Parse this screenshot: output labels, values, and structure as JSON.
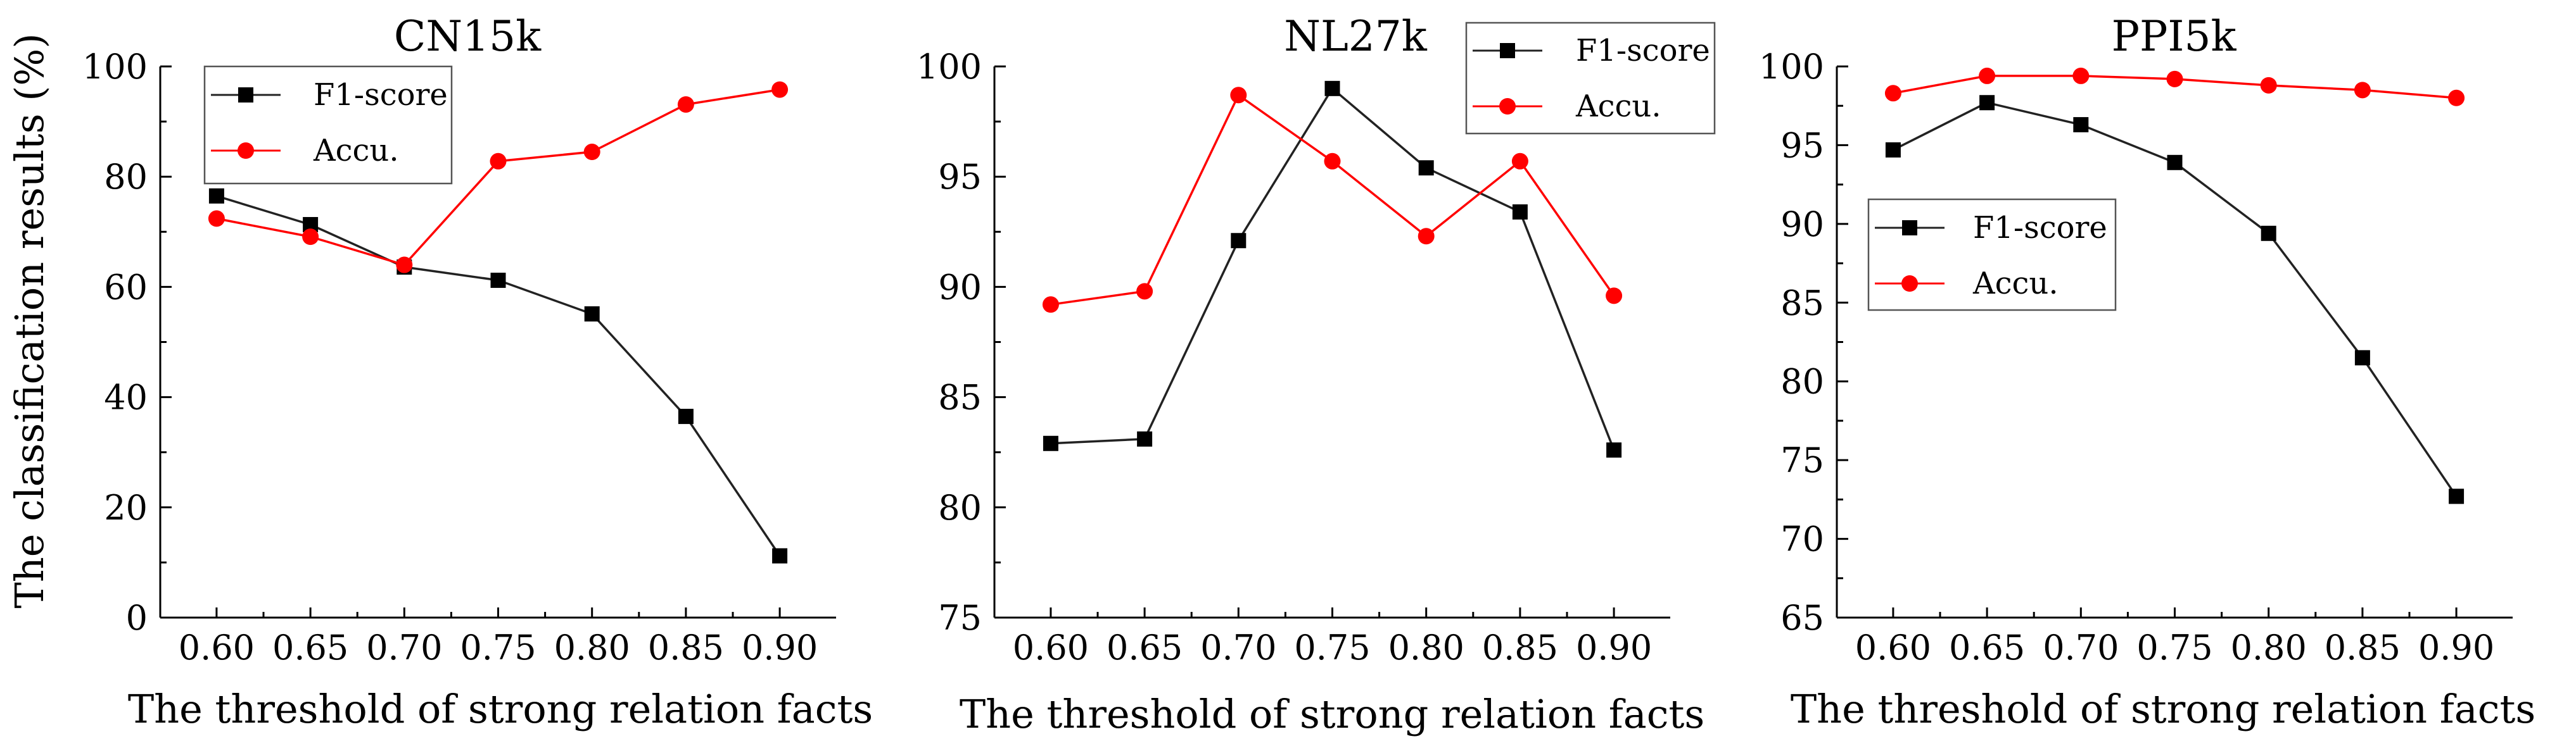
{
  "colors": {
    "f1": "#222222",
    "accu": "#ff0000"
  },
  "chart_data": [
    {
      "type": "line",
      "title": "CN15k",
      "xlabel": "The threshold of strong relation facts",
      "ylabel": "The classification results (%)",
      "x_ticks": [
        "0.60",
        "0.65",
        "0.70",
        "0.75",
        "0.80",
        "0.85",
        "0.90"
      ],
      "xlim": [
        0.57,
        0.93
      ],
      "ylim": [
        0,
        100
      ],
      "y_ticks": [
        "0",
        "20",
        "40",
        "60",
        "80",
        "100"
      ],
      "legend_position": "top-left",
      "series": [
        {
          "name": "F1-score",
          "marker": "square",
          "color": "#222222",
          "x": [
            0.6,
            0.65,
            0.7,
            0.75,
            0.8,
            0.85,
            0.9
          ],
          "values": [
            76.5,
            71.3,
            63.6,
            61.2,
            55.1,
            36.5,
            11.2
          ]
        },
        {
          "name": "Accu.",
          "marker": "circle",
          "color": "#ff0000",
          "x": [
            0.6,
            0.65,
            0.7,
            0.75,
            0.8,
            0.85,
            0.9
          ],
          "values": [
            72.4,
            69.1,
            64.0,
            82.8,
            84.5,
            93.1,
            95.8
          ]
        }
      ]
    },
    {
      "type": "line",
      "title": "NL27k",
      "xlabel": "The threshold of strong relation facts",
      "ylabel": "",
      "x_ticks": [
        "0.60",
        "0.65",
        "0.70",
        "0.75",
        "0.80",
        "0.85",
        "0.90"
      ],
      "xlim": [
        0.57,
        0.93
      ],
      "ylim": [
        75,
        100
      ],
      "y_ticks": [
        "75",
        "80",
        "85",
        "90",
        "95",
        "100"
      ],
      "legend_position": "top-right",
      "series": [
        {
          "name": "F1-score",
          "marker": "square",
          "color": "#222222",
          "x": [
            0.6,
            0.65,
            0.7,
            0.75,
            0.8,
            0.85,
            0.9
          ],
          "values": [
            82.9,
            83.1,
            92.1,
            99.0,
            95.4,
            93.4,
            82.6
          ]
        },
        {
          "name": "Accu.",
          "marker": "circle",
          "color": "#ff0000",
          "x": [
            0.6,
            0.65,
            0.7,
            0.75,
            0.8,
            0.85,
            0.9
          ],
          "values": [
            89.2,
            89.8,
            98.7,
            95.7,
            92.3,
            95.7,
            89.6
          ]
        }
      ]
    },
    {
      "type": "line",
      "title": "PPI5k",
      "xlabel": "The threshold of strong relation facts",
      "ylabel": "",
      "x_ticks": [
        "0.60",
        "0.65",
        "0.70",
        "0.75",
        "0.80",
        "0.85",
        "0.90"
      ],
      "xlim": [
        0.57,
        0.93
      ],
      "ylim": [
        65,
        100
      ],
      "y_ticks": [
        "65",
        "70",
        "75",
        "80",
        "85",
        "90",
        "95",
        "100"
      ],
      "legend_position": "middle-left",
      "series": [
        {
          "name": "F1-score",
          "marker": "square",
          "color": "#222222",
          "x": [
            0.6,
            0.65,
            0.7,
            0.75,
            0.8,
            0.85,
            0.9
          ],
          "values": [
            94.7,
            97.7,
            96.3,
            93.9,
            89.4,
            81.5,
            72.7
          ]
        },
        {
          "name": "Accu.",
          "marker": "circle",
          "color": "#ff0000",
          "x": [
            0.6,
            0.65,
            0.7,
            0.75,
            0.8,
            0.85,
            0.9
          ],
          "values": [
            98.3,
            99.4,
            99.4,
            99.2,
            98.8,
            98.5,
            98.0
          ]
        }
      ]
    }
  ]
}
